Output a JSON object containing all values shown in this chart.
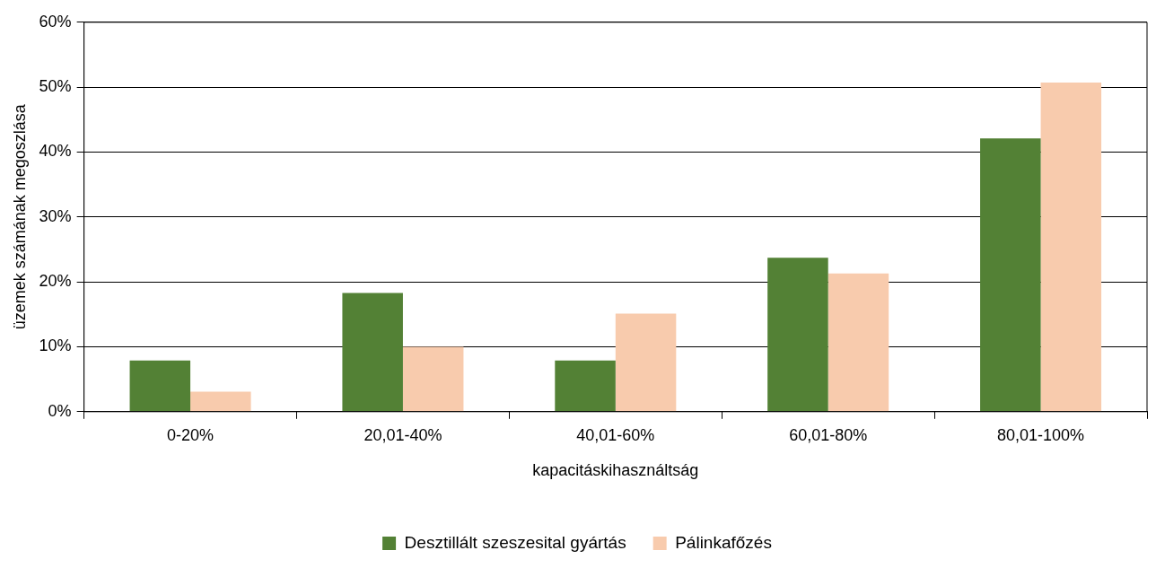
{
  "chart_data": {
    "type": "bar",
    "xlabel": "kapacitáskihasználtság",
    "ylabel": "üzemek számának megoszlása",
    "categories": [
      "0-20%",
      "20,01-40%",
      "40,01-60%",
      "60,01-80%",
      "80,01-100%"
    ],
    "series": [
      {
        "name": "Desztillált szeszesital gyártás",
        "color": "#538135",
        "values": [
          7.9,
          18.3,
          7.9,
          23.7,
          42.1
        ]
      },
      {
        "name": "Pálinkafőzés",
        "color": "#f8cbad",
        "values": [
          3.1,
          10.0,
          15.1,
          21.3,
          50.7
        ]
      }
    ],
    "ylim": [
      0,
      60
    ],
    "yticks": [
      {
        "value": 0,
        "label": "0%"
      },
      {
        "value": 10,
        "label": "10%"
      },
      {
        "value": 20,
        "label": "20%"
      },
      {
        "value": 30,
        "label": "30%"
      },
      {
        "value": 40,
        "label": "40%"
      },
      {
        "value": 50,
        "label": "50%"
      },
      {
        "value": 60,
        "label": "60%"
      }
    ],
    "grid": "y",
    "legend": "bottom"
  }
}
